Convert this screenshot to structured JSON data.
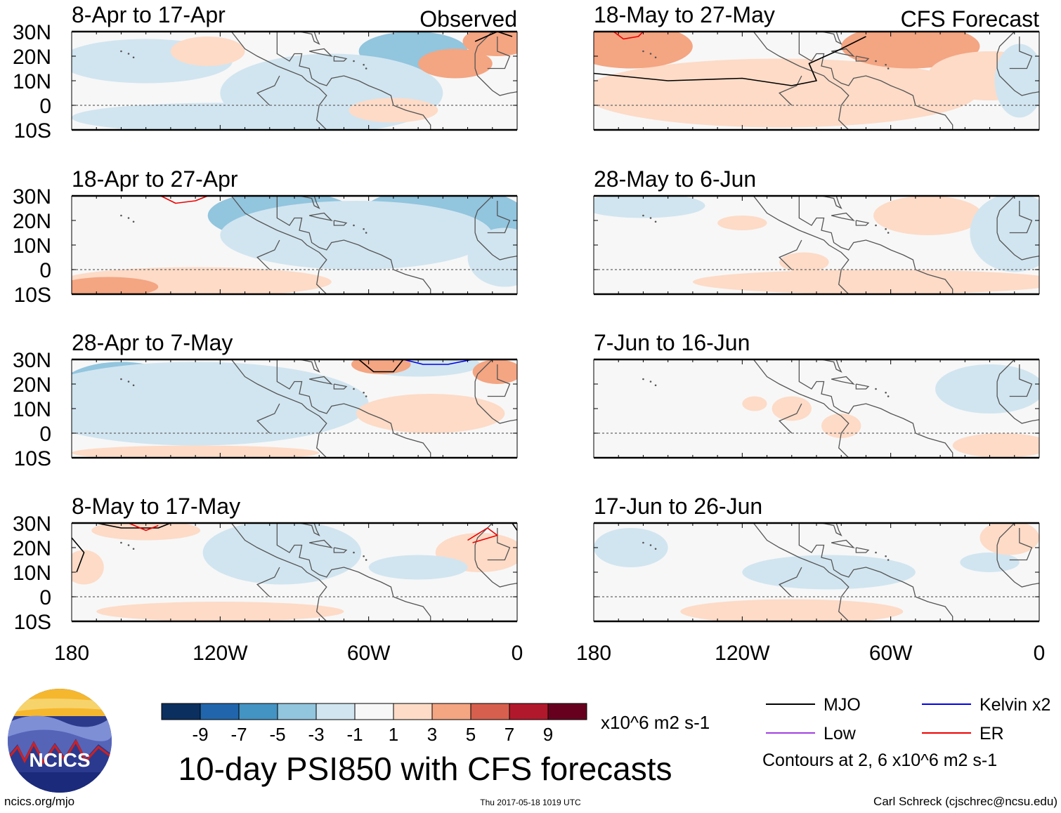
{
  "chart_data": {
    "type": "heatmap",
    "title": "10-day PSI850 with CFS forecasts",
    "variable": "PSI850 anomaly",
    "units": "x10^6 m2 s-1",
    "contour_note": "Contours at 2, 6 x10^6 m2 s-1",
    "observed_label": "Observed",
    "forecast_label": "CFS Forecast",
    "lat_ticks": [
      "30N",
      "20N",
      "10N",
      "0",
      "10S"
    ],
    "lon_ticks": [
      "180",
      "120W",
      "60W",
      "0"
    ],
    "lat_range": [
      -10,
      30
    ],
    "lon_range": [
      -180,
      0
    ],
    "colorbar": {
      "labels": [
        "-9",
        "-7",
        "-5",
        "-3",
        "-1",
        "1",
        "3",
        "5",
        "7",
        "9"
      ],
      "colors": [
        "#0b2f5f",
        "#2166ac",
        "#4393c3",
        "#92c5de",
        "#d1e5f0",
        "#f7f7f7",
        "#fddbc7",
        "#f4a582",
        "#d6604d",
        "#b2182b",
        "#67001f"
      ]
    },
    "legend": [
      {
        "name": "MJO",
        "color": "#000000"
      },
      {
        "name": "Kelvin x2",
        "color": "#0000ee"
      },
      {
        "name": "Low",
        "color": "#a040e0"
      },
      {
        "name": "ER",
        "color": "#ee0000"
      }
    ],
    "panels": [
      {
        "title": "8-Apr to 17-Apr",
        "group": "observed",
        "blobs": [
          {
            "lon": -150,
            "lat": 18,
            "rl": 35,
            "rla": 9,
            "v": -2
          },
          {
            "lon": -125,
            "lat": 22,
            "rl": 15,
            "rla": 6,
            "v": 2
          },
          {
            "lon": -42,
            "lat": 22,
            "rl": 22,
            "rla": 8,
            "v": -4
          },
          {
            "lon": -75,
            "lat": 5,
            "rl": 45,
            "rla": 16,
            "v": -2
          },
          {
            "lon": -120,
            "lat": -5,
            "rl": 60,
            "rla": 6,
            "v": -2
          },
          {
            "lon": -25,
            "lat": 17,
            "rl": 15,
            "rla": 6,
            "v": 3
          },
          {
            "lon": -8,
            "lat": 26,
            "rl": 14,
            "rla": 6,
            "v": 4
          },
          {
            "lon": -50,
            "lat": -2,
            "rl": 18,
            "rla": 5,
            "v": 2
          }
        ],
        "contours": [
          {
            "type": "MJO",
            "pts": [
              [
                -17,
                26
              ],
              [
                -8,
                30
              ],
              [
                -2,
                28
              ]
            ]
          }
        ]
      },
      {
        "title": "18-May to 27-May",
        "group": "forecast",
        "blobs": [
          {
            "lon": -105,
            "lat": 5,
            "rl": 80,
            "rla": 14,
            "v": 2
          },
          {
            "lon": -165,
            "lat": 24,
            "rl": 25,
            "rla": 9,
            "v": 4
          },
          {
            "lon": -52,
            "lat": 24,
            "rl": 28,
            "rla": 9,
            "v": 4
          },
          {
            "lon": -20,
            "lat": 12,
            "rl": 25,
            "rla": 10,
            "v": 2
          },
          {
            "lon": -8,
            "lat": 10,
            "rl": 10,
            "rla": 15,
            "v": -1.5
          }
        ],
        "contours": [
          {
            "type": "MJO",
            "pts": [
              [
                -180,
                13
              ],
              [
                -150,
                10
              ],
              [
                -120,
                11
              ],
              [
                -100,
                8
              ],
              [
                -90,
                10
              ],
              [
                -93,
                17
              ],
              [
                -82,
                22
              ],
              [
                -70,
                28
              ]
            ]
          },
          {
            "type": "ER",
            "pts": [
              [
                -172,
                30
              ],
              [
                -168,
                27
              ],
              [
                -162,
                28
              ],
              [
                -160,
                30
              ]
            ]
          }
        ]
      },
      {
        "title": "18-Apr to 27-Apr",
        "group": "observed",
        "blobs": [
          {
            "lon": -95,
            "lat": 22,
            "rl": 30,
            "rla": 10,
            "v": -5
          },
          {
            "lon": -30,
            "lat": 25,
            "rl": 25,
            "rla": 8,
            "v": -9
          },
          {
            "lon": -30,
            "lat": 20,
            "rl": 35,
            "rla": 14,
            "v": -4
          },
          {
            "lon": -65,
            "lat": 14,
            "rl": 55,
            "rla": 14,
            "v": -2
          },
          {
            "lon": -130,
            "lat": -5,
            "rl": 55,
            "rla": 6,
            "v": 2
          },
          {
            "lon": -165,
            "lat": -7,
            "rl": 20,
            "rla": 4,
            "v": 4
          },
          {
            "lon": -5,
            "lat": 5,
            "rl": 15,
            "rla": 12,
            "v": -2
          }
        ],
        "contours": [
          {
            "type": "ER",
            "pts": [
              [
                -144,
                30
              ],
              [
                -138,
                27
              ],
              [
                -130,
                28
              ],
              [
                -125,
                30
              ]
            ]
          }
        ]
      },
      {
        "title": "28-May to 6-Jun",
        "group": "forecast",
        "blobs": [
          {
            "lon": -45,
            "lat": 22,
            "rl": 22,
            "rla": 8,
            "v": 2
          },
          {
            "lon": -120,
            "lat": 19,
            "rl": 10,
            "rla": 3,
            "v": 1.5
          },
          {
            "lon": -95,
            "lat": 3,
            "rl": 10,
            "rla": 4,
            "v": 1.5
          },
          {
            "lon": -10,
            "lat": 15,
            "rl": 18,
            "rla": 16,
            "v": -2
          },
          {
            "lon": -65,
            "lat": -5,
            "rl": 75,
            "rla": 5,
            "v": 2
          },
          {
            "lon": -160,
            "lat": 26,
            "rl": 25,
            "rla": 5,
            "v": -1.5
          }
        ],
        "contours": []
      },
      {
        "title": "28-Apr to 7-May",
        "group": "observed",
        "blobs": [
          {
            "lon": -160,
            "lat": 18,
            "rl": 25,
            "rla": 11,
            "v": -5
          },
          {
            "lon": -110,
            "lat": 18,
            "rl": 22,
            "rla": 10,
            "v": -5
          },
          {
            "lon": -130,
            "lat": 12,
            "rl": 70,
            "rla": 17,
            "v": -2
          },
          {
            "lon": -40,
            "lat": 28,
            "rl": 25,
            "rla": 5,
            "v": -2
          },
          {
            "lon": -55,
            "lat": 28,
            "rl": 12,
            "rla": 4,
            "v": 3
          },
          {
            "lon": -35,
            "lat": 8,
            "rl": 30,
            "rla": 8,
            "v": 2
          },
          {
            "lon": -8,
            "lat": 25,
            "rl": 10,
            "rla": 5,
            "v": 3
          },
          {
            "lon": -130,
            "lat": -8,
            "rl": 50,
            "rla": 3,
            "v": 1.5
          }
        ],
        "contours": [
          {
            "type": "MJO",
            "pts": [
              [
                -64,
                30
              ],
              [
                -58,
                25
              ],
              [
                -50,
                25
              ],
              [
                -46,
                30
              ]
            ]
          },
          {
            "type": "Kelvin x2",
            "pts": [
              [
                -46,
                30
              ],
              [
                -38,
                28
              ],
              [
                -28,
                28
              ],
              [
                -18,
                30
              ]
            ]
          }
        ]
      },
      {
        "title": "7-Jun to 16-Jun",
        "group": "forecast",
        "blobs": [
          {
            "lon": -20,
            "lat": 18,
            "rl": 22,
            "rla": 10,
            "v": -2
          },
          {
            "lon": -100,
            "lat": 10,
            "rl": 8,
            "rla": 5,
            "v": 1.5
          },
          {
            "lon": -115,
            "lat": 12,
            "rl": 5,
            "rla": 3,
            "v": 1.5
          },
          {
            "lon": -80,
            "lat": 3,
            "rl": 8,
            "rla": 5,
            "v": 1.5
          },
          {
            "lon": -15,
            "lat": -5,
            "rl": 20,
            "rla": 5,
            "v": 1.5
          }
        ],
        "contours": []
      },
      {
        "title": "8-May to 17-May",
        "group": "observed",
        "blobs": [
          {
            "lon": -100,
            "lat": 20,
            "rl": 18,
            "rla": 8,
            "v": -5
          },
          {
            "lon": -95,
            "lat": 18,
            "rl": 32,
            "rla": 13,
            "v": -2.5
          },
          {
            "lon": -150,
            "lat": 27,
            "rl": 22,
            "rla": 4,
            "v": 2
          },
          {
            "lon": -175,
            "lat": 12,
            "rl": 8,
            "rla": 7,
            "v": 2
          },
          {
            "lon": -15,
            "lat": 18,
            "rl": 18,
            "rla": 8,
            "v": 2
          },
          {
            "lon": -120,
            "lat": -6,
            "rl": 50,
            "rla": 4,
            "v": 1.5
          },
          {
            "lon": -40,
            "lat": 12,
            "rl": 20,
            "rla": 5,
            "v": -1.5
          }
        ],
        "contours": [
          {
            "type": "MJO",
            "pts": [
              [
                -180,
                24
              ],
              [
                -175,
                18
              ],
              [
                -178,
                10
              ]
            ]
          },
          {
            "type": "MJO",
            "pts": [
              [
                -170,
                30
              ],
              [
                -160,
                28
              ],
              [
                -145,
                28
              ],
              [
                -140,
                30
              ]
            ]
          },
          {
            "type": "ER",
            "pts": [
              [
                -157,
                30
              ],
              [
                -150,
                27
              ],
              [
                -145,
                29
              ]
            ]
          },
          {
            "type": "ER",
            "pts": [
              [
                -20,
                23
              ],
              [
                -12,
                28
              ],
              [
                -8,
                25
              ],
              [
                -18,
                22
              ]
            ]
          },
          {
            "type": "MJO",
            "pts": [
              [
                -2,
                30
              ],
              [
                0,
                27
              ]
            ]
          }
        ]
      },
      {
        "title": "17-Jun to 26-Jun",
        "group": "forecast",
        "blobs": [
          {
            "lon": -85,
            "lat": 10,
            "rl": 35,
            "rla": 7,
            "v": -2
          },
          {
            "lon": -165,
            "lat": 20,
            "rl": 15,
            "rla": 8,
            "v": -1.5
          },
          {
            "lon": -20,
            "lat": 14,
            "rl": 12,
            "rla": 4,
            "v": -1.5
          },
          {
            "lon": -12,
            "lat": 24,
            "rl": 12,
            "rla": 7,
            "v": 2
          },
          {
            "lon": -100,
            "lat": -6,
            "rl": 45,
            "rla": 5,
            "v": 2
          }
        ],
        "contours": []
      }
    ]
  },
  "footer": {
    "logo_text": "NCICS",
    "url": "ncics.org/mjo",
    "timestamp": "Thu 2017-05-18 1019 UTC",
    "credit": "Carl Schreck (cjschrec@ncsu.edu)"
  }
}
